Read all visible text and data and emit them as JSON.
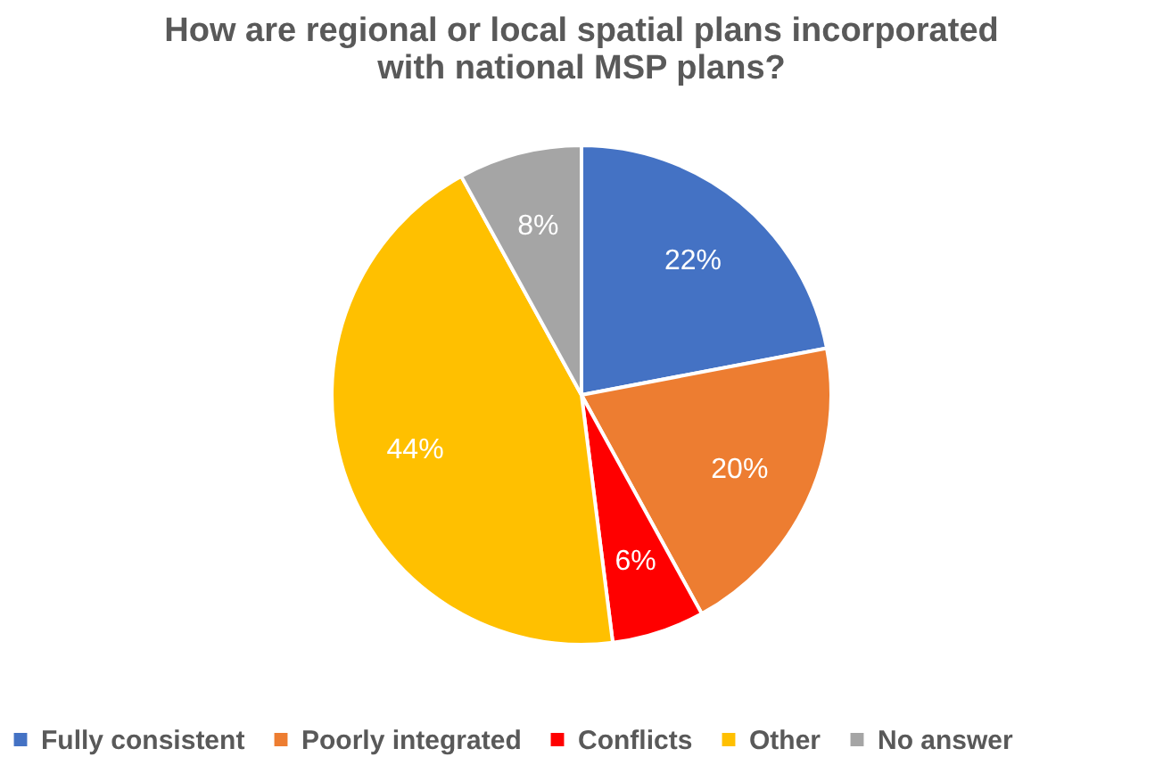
{
  "chart_data": {
    "type": "pie",
    "title": "How are regional or local spatial plans incorporated\nwith national MSP plans?",
    "categories": [
      "Fully consistent",
      "Poorly integrated",
      "Conflicts",
      "Other",
      "No answer"
    ],
    "values": [
      22,
      20,
      6,
      44,
      8
    ],
    "value_labels": [
      "22%",
      "20%",
      "6%",
      "44%",
      "8%"
    ],
    "colors": [
      "#4472c4",
      "#ed7d31",
      "#ff0000",
      "#ffc000",
      "#a5a5a5"
    ],
    "legend": "bottom"
  }
}
